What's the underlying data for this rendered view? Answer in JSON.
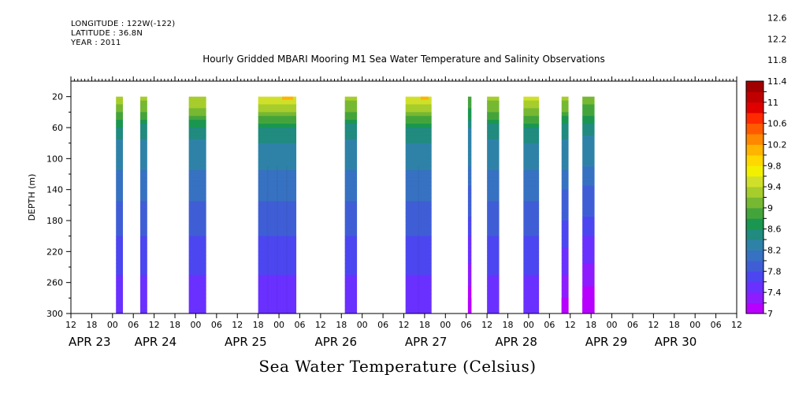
{
  "header": {
    "longitude": "LONGITUDE : 122W(-122)",
    "latitude": "LATITUDE : 36.8N",
    "year": "YEAR : 2011",
    "title": "Hourly Gridded MBARI Mooring M1 Sea Water Temperature and Salinity Observations"
  },
  "footer": {
    "title": "Sea Water Temperature (Celsius)"
  },
  "chart_data": {
    "type": "heatmap",
    "title": "Hourly Gridded MBARI Mooring M1 Sea Water Temperature and Salinity Observations",
    "xlabel": "",
    "ylabel": "DEPTH (m)",
    "colorbar_label": "Sea Water Temperature (Celsius)",
    "x_units": "hours since APR 23 2011 00:00",
    "xlim": [
      -12,
      180
    ],
    "ylim": [
      300,
      0
    ],
    "y_ticks": [
      20,
      60,
      100,
      140,
      180,
      220,
      260,
      300
    ],
    "x_hour_ticks": [
      {
        "t": -12,
        "label": "12"
      },
      {
        "t": -6,
        "label": "18"
      },
      {
        "t": 0,
        "label": "00"
      },
      {
        "t": 6,
        "label": "06"
      },
      {
        "t": 12,
        "label": "12"
      },
      {
        "t": 18,
        "label": "18"
      },
      {
        "t": 24,
        "label": "00"
      },
      {
        "t": 30,
        "label": "06"
      },
      {
        "t": 36,
        "label": "12"
      },
      {
        "t": 42,
        "label": "18"
      },
      {
        "t": 48,
        "label": "00"
      },
      {
        "t": 54,
        "label": "06"
      },
      {
        "t": 60,
        "label": "12"
      },
      {
        "t": 66,
        "label": "18"
      },
      {
        "t": 72,
        "label": "00"
      },
      {
        "t": 78,
        "label": "06"
      },
      {
        "t": 84,
        "label": "12"
      },
      {
        "t": 90,
        "label": "18"
      },
      {
        "t": 96,
        "label": "00"
      },
      {
        "t": 102,
        "label": "06"
      },
      {
        "t": 108,
        "label": "12"
      },
      {
        "t": 114,
        "label": "18"
      },
      {
        "t": 120,
        "label": "00"
      },
      {
        "t": 126,
        "label": "06"
      },
      {
        "t": 132,
        "label": "12"
      },
      {
        "t": 138,
        "label": "18"
      },
      {
        "t": 144,
        "label": "00"
      },
      {
        "t": 150,
        "label": "06"
      },
      {
        "t": 156,
        "label": "12"
      },
      {
        "t": 162,
        "label": "18"
      },
      {
        "t": 168,
        "label": "00"
      },
      {
        "t": 174,
        "label": "06"
      },
      {
        "t": 180,
        "label": "12"
      }
    ],
    "x_day_labels": [
      {
        "t": -12,
        "label": "APR 23"
      },
      {
        "t": 7,
        "label": "APR 24"
      },
      {
        "t": 33,
        "label": "APR 25"
      },
      {
        "t": 59,
        "label": "APR 26"
      },
      {
        "t": 85,
        "label": "APR 27"
      },
      {
        "t": 111,
        "label": "APR 28"
      },
      {
        "t": 137,
        "label": "APR 29"
      },
      {
        "t": 157,
        "label": "APR 30"
      }
    ],
    "colorbar_levels": [
      "7",
      "7.4",
      "7.8",
      "8.2",
      "8.6",
      "9",
      "9.4",
      "9.8",
      "10.2",
      "10.6",
      "11",
      "11.4",
      "11.8",
      "12.2",
      "12.6"
    ],
    "colorbar_colors": [
      "#b700ff",
      "#8e1cff",
      "#6a30ff",
      "#4c46f0",
      "#3f5ed6",
      "#3771c2",
      "#2e82a8",
      "#208b7e",
      "#1a9650",
      "#44a43c",
      "#76b832",
      "#a6cd2c",
      "#d0e02a",
      "#f2f000",
      "#ffd800",
      "#ffb400",
      "#ff8800",
      "#ff5a00",
      "#ff2a00",
      "#e00000",
      "#c00000",
      "#a00000"
    ],
    "profile": [
      {
        "depth": 20,
        "temp": 10.0
      },
      {
        "depth": 40,
        "temp": 9.6
      },
      {
        "depth": 60,
        "temp": 9.0
      },
      {
        "depth": 80,
        "temp": 8.8
      },
      {
        "depth": 100,
        "temp": 8.75
      },
      {
        "depth": 120,
        "temp": 8.55
      },
      {
        "depth": 140,
        "temp": 8.4
      },
      {
        "depth": 160,
        "temp": 8.3
      },
      {
        "depth": 180,
        "temp": 8.2
      },
      {
        "depth": 200,
        "temp": 8.05
      },
      {
        "depth": 220,
        "temp": 7.95
      },
      {
        "depth": 240,
        "temp": 7.85
      },
      {
        "depth": 260,
        "temp": 7.75
      },
      {
        "depth": 280,
        "temp": 7.65
      },
      {
        "depth": 300,
        "temp": 7.55
      }
    ],
    "data_blocks": [
      {
        "start": 1,
        "end": 3,
        "surface_temp": 10.1,
        "deep_offset": 0
      },
      {
        "start": 8,
        "end": 10,
        "surface_temp": 10.0,
        "deep_offset": 0
      },
      {
        "start": 22,
        "end": 27,
        "surface_temp": 10.2,
        "deep_offset": 0
      },
      {
        "start": 42,
        "end": 53,
        "surface_temp": 10.4,
        "deep_offset": 0,
        "hotspot_temp": 11.2
      },
      {
        "start": 67,
        "end": 70.5,
        "surface_temp": 10.0,
        "deep_offset": 0
      },
      {
        "start": 84.5,
        "end": 92,
        "surface_temp": 10.4,
        "deep_offset": 0,
        "hotspot_temp": 11.1
      },
      {
        "start": 102.5,
        "end": 103.5,
        "surface_temp": 9.6,
        "deep_offset": -0.6
      },
      {
        "start": 108,
        "end": 111.5,
        "surface_temp": 10.0,
        "deep_offset": 0
      },
      {
        "start": 118.5,
        "end": 123,
        "surface_temp": 10.3,
        "deep_offset": 0
      },
      {
        "start": 129.5,
        "end": 131.5,
        "surface_temp": 10.0,
        "deep_offset": -0.4
      },
      {
        "start": 135.5,
        "end": 139,
        "surface_temp": 9.8,
        "deep_offset": -0.6
      }
    ]
  }
}
